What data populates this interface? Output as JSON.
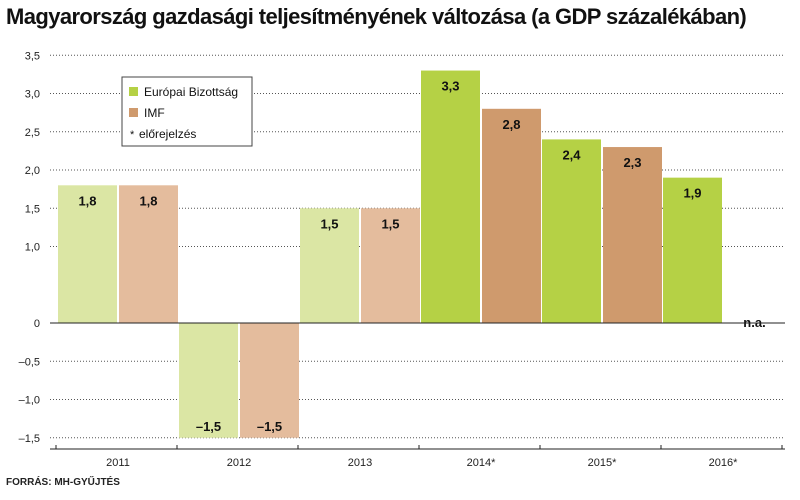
{
  "title": "Magyarország gazdasági teljesítményének változása (a GDP százalékában)",
  "source": "FORRÁS: MH-GYŰJTÉS",
  "legend": {
    "ec": "Európai Bizottság",
    "imf": "IMF",
    "note_mark": "*",
    "note": "előrejelzés"
  },
  "colors": {
    "ec_actual": "#dbe6a4",
    "ec_forecast": "#b5d145",
    "imf_actual": "#e4bc9d",
    "imf_forecast": "#cf9a6d"
  },
  "chart_data": {
    "type": "bar",
    "title": "Magyarország gazdasági teljesítményének változása (a GDP százalékában)",
    "categories": [
      "2011",
      "2012",
      "2013",
      "2014*",
      "2015*",
      "2016*"
    ],
    "forecast": [
      false,
      false,
      false,
      true,
      true,
      true
    ],
    "series": [
      {
        "name": "Európai Bizottság",
        "values": [
          1.8,
          -1.5,
          1.5,
          3.3,
          2.4,
          1.9
        ],
        "labels": [
          "1,8",
          "–1,5",
          "1,5",
          "3,3",
          "2,4",
          "1,9"
        ]
      },
      {
        "name": "IMF",
        "values": [
          1.8,
          -1.5,
          1.5,
          2.8,
          2.3,
          null
        ],
        "labels": [
          "1,8",
          "–1,5",
          "1,5",
          "2,8",
          "2,3",
          "n.a."
        ]
      }
    ],
    "y_ticks": [
      3.5,
      3.0,
      2.5,
      2.0,
      1.5,
      1.0,
      0,
      -0.5,
      -1.0,
      -1.5
    ],
    "y_tick_labels": [
      "3,5",
      "3,0",
      "2,5",
      "2,0",
      "1,5",
      "1,0",
      "0",
      "–0,5",
      "–1,0",
      "–1,5"
    ],
    "ylim": [
      -1.65,
      3.5
    ],
    "grid": true,
    "legend_position": "top-left"
  }
}
